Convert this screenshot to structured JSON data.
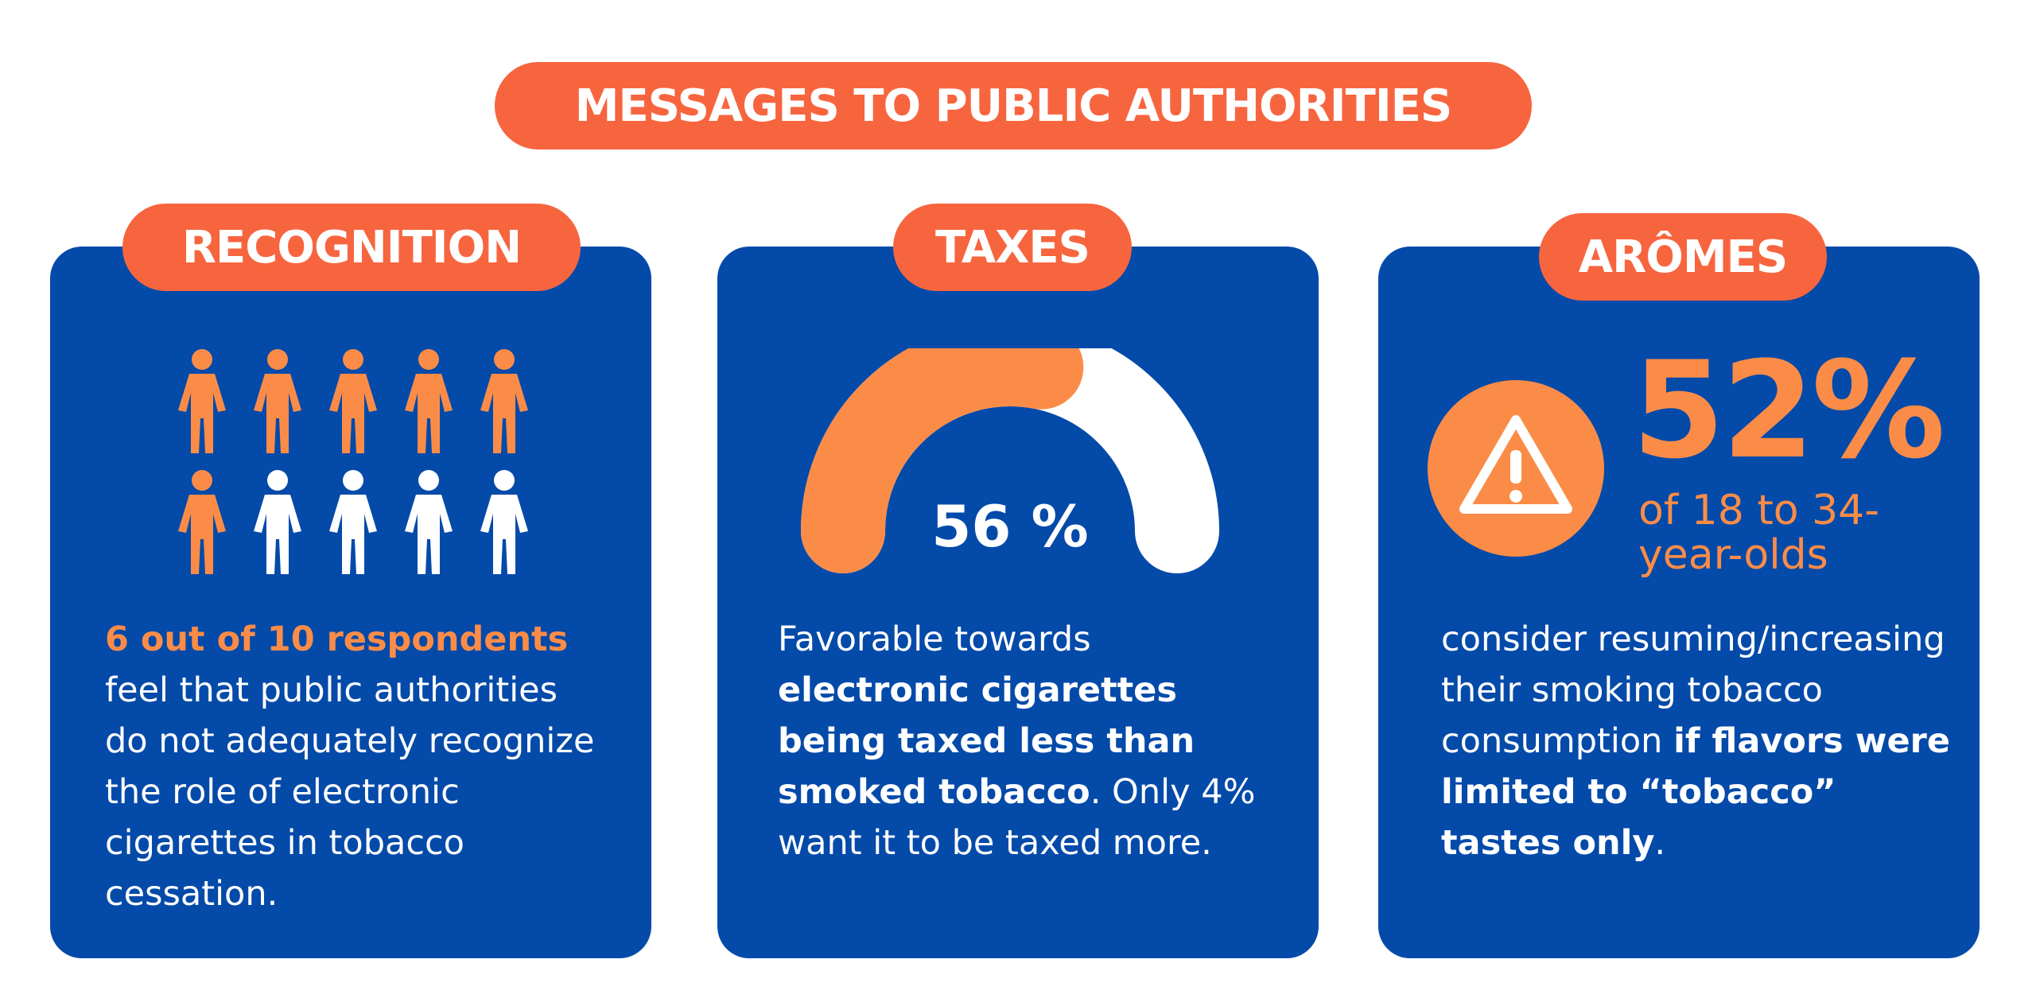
{
  "title": "MESSAGES TO PUBLIC AUTHORITIES",
  "colors": {
    "accent": "#f7653f",
    "card": "#044aa9",
    "highlight": "#fb8c48",
    "text": "#ffffff"
  },
  "recognition": {
    "label": "RECOGNITION",
    "highlighted_count": 6,
    "total_count": 10,
    "stat": "6 out of 10 respondents",
    "text": "feel that public authorities do not adequately recognize the role of electronic cigarettes in tobacco cessation."
  },
  "taxes": {
    "label": "TAXES",
    "gauge_fraction": 0.56,
    "value_label": "56 %",
    "intro": "Favorable towards ",
    "bold": "electronic cigarettes being taxed less than smoked tobacco",
    "rest": ". Only 4% want it to be taxed more."
  },
  "aromes": {
    "label": "ARÔMES",
    "icon": "warning-icon",
    "percent": "52%",
    "age": "of 18 to 34-year-olds",
    "intro": "consider resuming/increasing their smoking tobacco consumption ",
    "bold": "if flavors were limited to “tobacco” tastes only",
    "end": "."
  }
}
